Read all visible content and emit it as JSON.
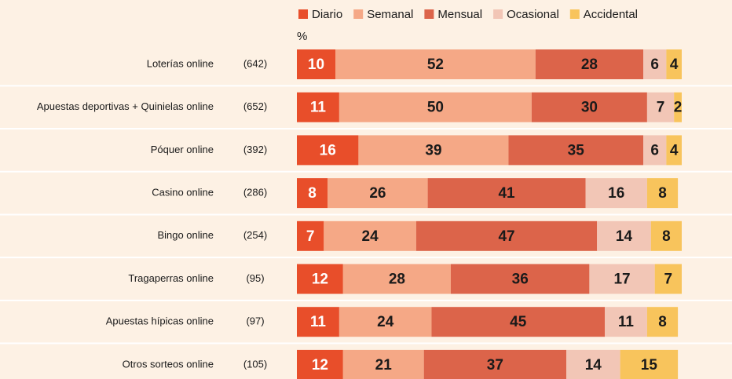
{
  "chart_data": {
    "type": "stacked-bar-horizontal",
    "unit": "%",
    "categories": [
      "Loterías online",
      "Apuestas  deportivas + Quinielas online",
      "Póquer online",
      "Casino online",
      "Bingo online",
      "Tragaperras online",
      "Apuestas hípicas online",
      "Otros sorteos online"
    ],
    "sample_sizes": [
      "(642)",
      "(652)",
      "(392)",
      "(286)",
      "(254)",
      "(95)",
      "(97)",
      "(105)"
    ],
    "xlim": [
      0,
      100
    ],
    "series": [
      {
        "name": "Diario",
        "color": "#e84e2a",
        "text_color": "#ffffff",
        "values": [
          10,
          11,
          16,
          8,
          7,
          12,
          11,
          12
        ]
      },
      {
        "name": "Semanal",
        "color": "#f5a886",
        "text_color": "#1a1a1a",
        "values": [
          52,
          50,
          39,
          26,
          24,
          28,
          24,
          21
        ]
      },
      {
        "name": "Mensual",
        "color": "#dc644a",
        "text_color": "#1a1a1a",
        "values": [
          28,
          30,
          35,
          41,
          47,
          36,
          45,
          37
        ]
      },
      {
        "name": "Ocasional",
        "color": "#f2c6b6",
        "text_color": "#1a1a1a",
        "values": [
          6,
          7,
          6,
          16,
          14,
          17,
          11,
          14
        ]
      },
      {
        "name": "Accidental",
        "color": "#f8c45c",
        "text_color": "#1a1a1a",
        "values": [
          4,
          2,
          4,
          8,
          8,
          7,
          8,
          15
        ]
      }
    ]
  }
}
